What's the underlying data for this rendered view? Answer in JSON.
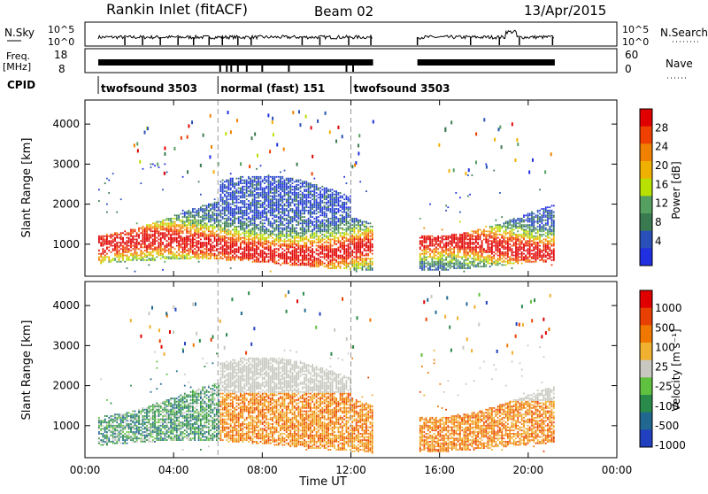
{
  "header": {
    "title": "Rankin Inlet (fitACF)",
    "beam": "Beam 02",
    "date": "13/Apr/2015"
  },
  "panels": {
    "nsky_label": "N.Sky",
    "nsky_ticks": [
      "10^5",
      "10^0"
    ],
    "nsearch_label": "N.Search",
    "nsearch_ticks": [
      "10^5",
      "10^0"
    ],
    "freq_label": "Freq.",
    "freq_unit": "[MHz]",
    "freq_ticks": [
      "18",
      "8"
    ],
    "nave_label": "Nave",
    "nave_ticks": [
      "60",
      "0"
    ],
    "cpid_label": "CPID",
    "cpid_segments": [
      {
        "label": "twofsound 3503",
        "start": 0.6,
        "end": 6.0
      },
      {
        "label": "normal (fast) 151",
        "start": 6.0,
        "end": 12.0
      },
      {
        "label": "twofsound 3503",
        "start": 12.0,
        "end": 24.0
      }
    ]
  },
  "colors": {
    "power": [
      "#2030e0",
      "#2850b8",
      "#3a7a50",
      "#55a060",
      "#b8e000",
      "#f0b000",
      "#f08000",
      "#f04000",
      "#e00000"
    ],
    "velocity": [
      "#2040c0",
      "#206890",
      "#2a8a4a",
      "#60c040",
      "#c8c8c0",
      "#f0b030",
      "#f07800",
      "#e84000",
      "#e00000"
    ],
    "ground": "#c8c8c0"
  },
  "chart_data": {
    "type": "heatmap",
    "xlabel": "Time UT",
    "x_ticks": [
      "00:00",
      "04:00",
      "08:00",
      "12:00",
      "16:00",
      "20:00",
      "00:00"
    ],
    "xlim": [
      0,
      24
    ],
    "ylim": [
      200,
      4600
    ],
    "y_ticks": [
      1000,
      2000,
      3000,
      4000
    ],
    "cpid_boundaries_hours": [
      6.0,
      12.0
    ],
    "data_gaps_hours": [
      [
        13.0,
        15.0
      ],
      [
        21.2,
        24.0
      ]
    ],
    "panels": [
      {
        "name": "power",
        "ylabel": "Slant Range [km]",
        "colorbar_label": "Power [dB]",
        "colorbar_ticks": [
          "28",
          "24",
          "20",
          "16",
          "12",
          "8",
          "4"
        ],
        "range": [
          0,
          30
        ]
      },
      {
        "name": "velocity",
        "ylabel": "Slant Range [km]",
        "colorbar_label": "Velocity [m s⁻¹]",
        "colorbar_ticks": [
          "1000",
          "500",
          "100",
          "25",
          "-25",
          "-100",
          "-500",
          "-1000"
        ],
        "range": [
          -1000,
          1000
        ]
      }
    ]
  }
}
